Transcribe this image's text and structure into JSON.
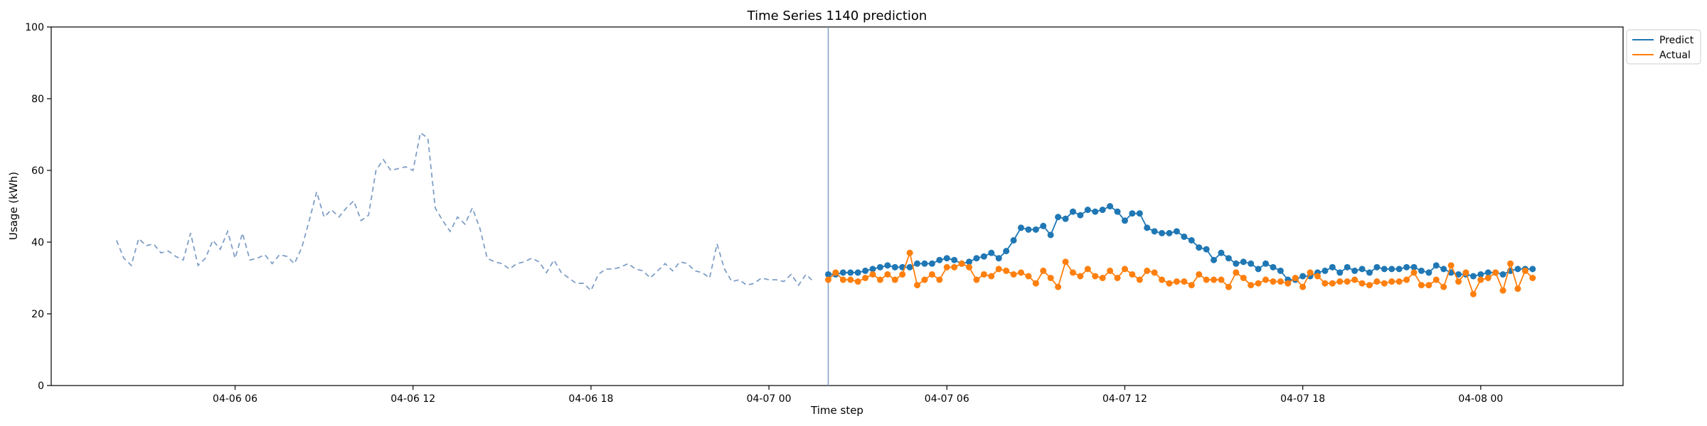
{
  "chart_data": {
    "type": "line",
    "title": "Time Series 1140 prediction",
    "xlabel": "Time step",
    "ylabel": "Usage (kWh)",
    "ylim": [
      0,
      100
    ],
    "yticks": [
      0,
      20,
      40,
      60,
      80,
      100
    ],
    "xticks": [
      {
        "pos": 9,
        "label": "04-06 06"
      },
      {
        "pos": 21,
        "label": "04-06 12"
      },
      {
        "pos": 33,
        "label": "04-06 18"
      },
      {
        "pos": 45,
        "label": "04-07 00"
      },
      {
        "pos": 57,
        "label": "04-07 06"
      },
      {
        "pos": 69,
        "label": "04-07 12"
      },
      {
        "pos": 81,
        "label": "04-07 18"
      },
      {
        "pos": 93,
        "label": "04-08 00"
      }
    ],
    "xlim": [
      -3.4,
      102.6
    ],
    "grid": false,
    "legend_position": "upper-right-outside",
    "history": {
      "style": "dashed",
      "color": "#7f9fc7",
      "x_start": 1.0,
      "x_step": 0.5,
      "values": [
        40.5,
        35.5,
        33.5,
        41,
        39,
        39.5,
        37,
        37.5,
        36,
        35,
        42.5,
        33.5,
        35.5,
        40.5,
        38,
        43,
        35.5,
        42.5,
        35,
        35.5,
        36.5,
        34,
        36.5,
        36,
        34,
        38.5,
        46,
        54,
        47,
        49,
        47,
        49.5,
        51.5,
        46,
        47.5,
        60,
        63,
        60,
        60.5,
        61,
        60,
        70.5,
        69,
        49.5,
        46,
        43,
        47,
        45,
        49.5,
        44,
        35.5,
        34.5,
        34,
        32.5,
        34,
        34.5,
        35.5,
        34.5,
        31.5,
        35,
        31.5,
        30,
        28.5,
        28.5,
        26.5,
        31,
        32.5,
        32.5,
        33,
        34,
        32.5,
        32,
        30,
        32,
        34,
        32,
        34.5,
        34,
        32,
        31.5,
        30,
        39.5,
        32.5,
        29,
        29.5,
        28,
        28.5,
        30,
        29.5,
        29.5,
        29,
        31,
        28,
        31,
        29
      ]
    },
    "split_x": 49.0,
    "series": [
      {
        "name": "Predict",
        "color": "#1f77b4",
        "x_start": 49.0,
        "x_step": 0.5,
        "values": [
          31,
          31,
          31.5,
          31.5,
          31.5,
          32,
          32.5,
          33,
          33.5,
          33,
          33,
          33,
          34,
          34,
          34,
          35,
          35.5,
          35,
          34,
          34.5,
          35.5,
          36,
          37,
          35.5,
          37.5,
          40.5,
          44,
          43.5,
          43.5,
          44.5,
          42,
          47,
          46.5,
          48.5,
          47.5,
          49,
          48.5,
          49,
          50,
          48.5,
          46,
          48,
          48,
          44,
          43,
          42.5,
          42.5,
          43,
          41.5,
          40.5,
          38.5,
          38,
          35,
          37,
          35.5,
          34,
          34.5,
          34,
          32.5,
          34,
          33,
          32,
          29.5,
          29.5,
          30.5,
          30.5,
          31.5,
          32,
          33,
          31.5,
          33,
          32,
          32.5,
          31.5,
          33,
          32.5,
          32.5,
          32.5,
          33,
          33,
          32,
          31.5,
          33.5,
          32.5,
          31.5,
          31,
          31,
          30.5,
          31,
          31.5,
          31.5,
          31,
          32,
          32.5,
          32.5,
          32.5
        ]
      },
      {
        "name": "Actual",
        "color": "#ff7f0e",
        "x_start": 49.0,
        "x_step": 0.5,
        "values": [
          29.5,
          31.5,
          29.5,
          29.5,
          29,
          30,
          31,
          29.5,
          31,
          29.5,
          31,
          37,
          28,
          29.5,
          31,
          29.5,
          33,
          33,
          34,
          33,
          29.5,
          31,
          30.5,
          32.5,
          32,
          31,
          31.5,
          30.5,
          28.5,
          32,
          30,
          27.5,
          34.5,
          31.5,
          30.5,
          32.5,
          30.5,
          30,
          32,
          30,
          32.5,
          31,
          29.5,
          32,
          31.5,
          29.5,
          28.5,
          29,
          29,
          28,
          31,
          29.5,
          29.5,
          29.5,
          27.5,
          31.5,
          30,
          28,
          28.5,
          29.5,
          29,
          29,
          28.5,
          30,
          27.5,
          31.5,
          30.5,
          28.5,
          28.5,
          29,
          29,
          29.5,
          28.5,
          28,
          29,
          28.5,
          29,
          29,
          29.5,
          31.5,
          28,
          28,
          29.5,
          27.5,
          33.5,
          29,
          31.5,
          25.5,
          29.5,
          30,
          31.5,
          26.5,
          34,
          27,
          32,
          30
        ]
      }
    ]
  }
}
